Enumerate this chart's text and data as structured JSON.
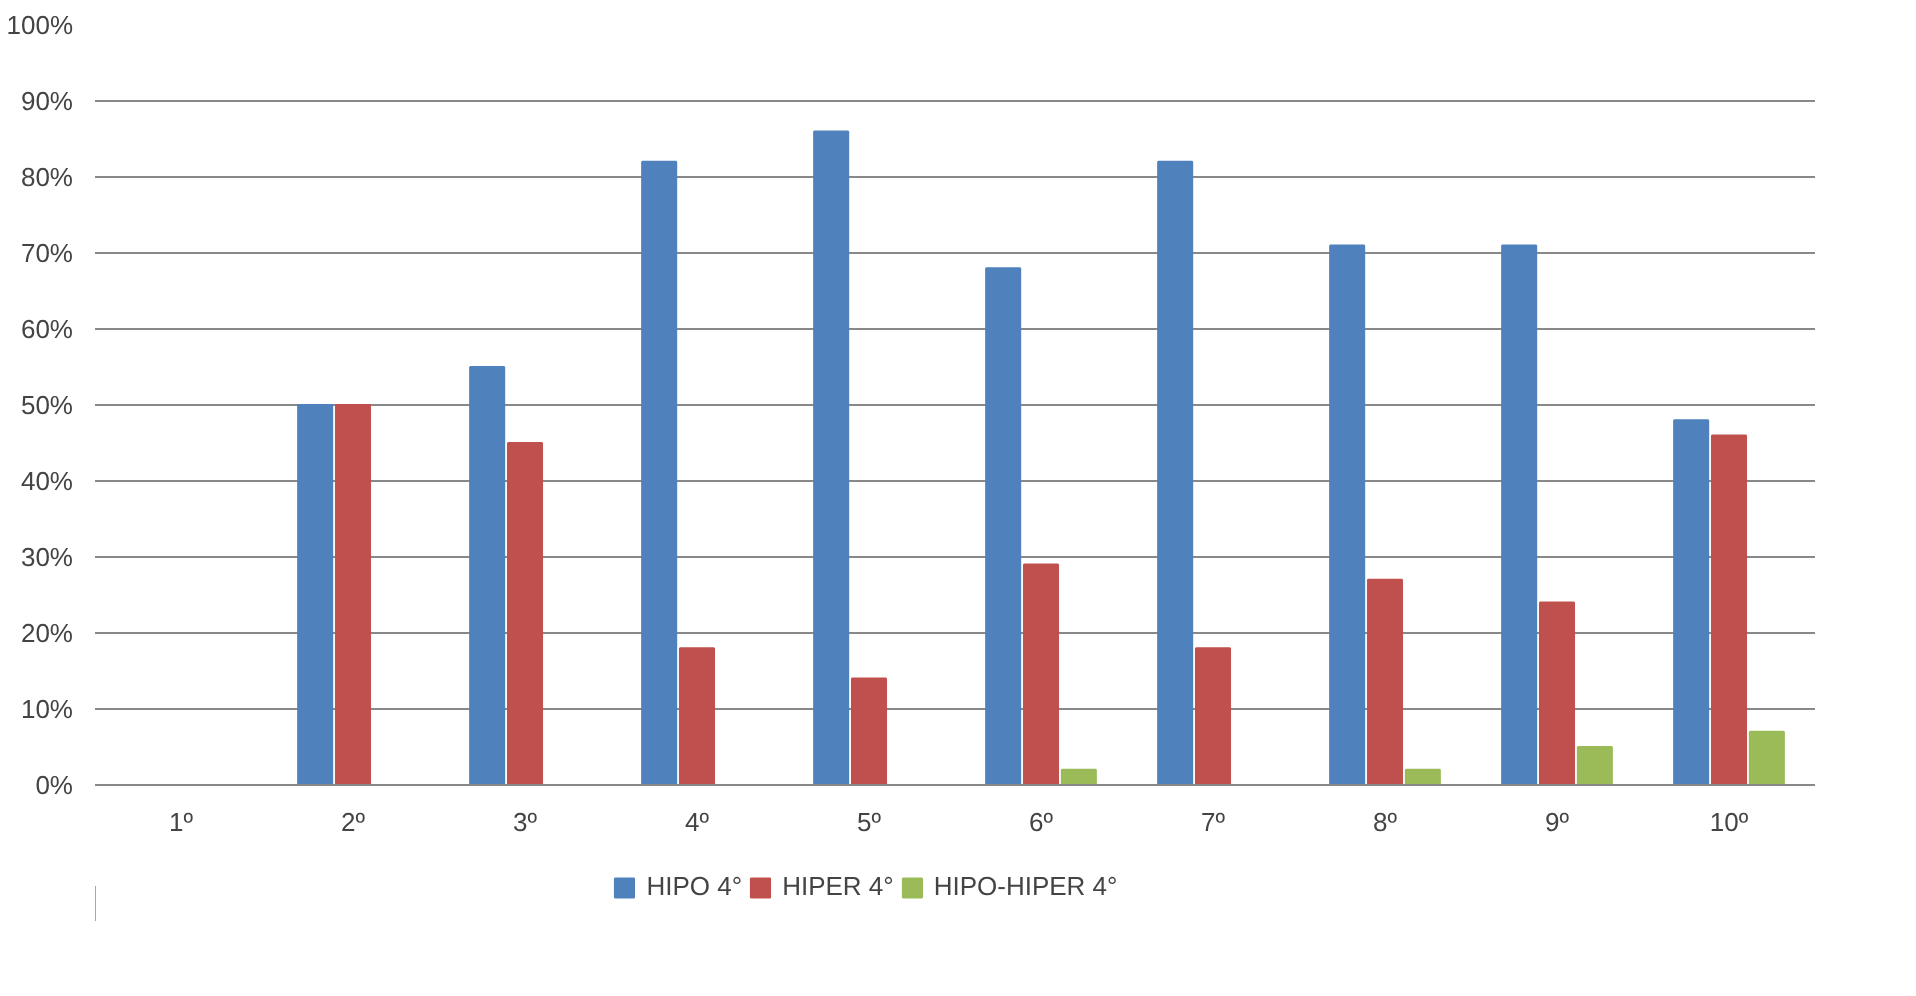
{
  "chart_data": {
    "type": "bar",
    "categories": [
      "1º",
      "2º",
      "3º",
      "4º",
      "5º",
      "6º",
      "7º",
      "8º",
      "9º",
      "10º"
    ],
    "series": [
      {
        "name": "HIPO 4°",
        "color": "#4f81bd",
        "values": [
          0,
          50,
          55,
          82,
          86,
          68,
          82,
          71,
          71,
          48
        ]
      },
      {
        "name": "HIPER 4°",
        "color": "#c0504d",
        "values": [
          0,
          50,
          45,
          18,
          14,
          29,
          18,
          27,
          24,
          46
        ]
      },
      {
        "name": "HIPO-HIPER 4°",
        "color": "#9bbb59",
        "values": [
          0,
          0,
          0,
          0,
          0,
          2,
          0,
          2,
          5,
          7
        ]
      }
    ],
    "ylim": [
      0,
      100
    ],
    "yticks": [
      {
        "value": 0,
        "label": "0%"
      },
      {
        "value": 10,
        "label": "10%"
      },
      {
        "value": 20,
        "label": "20%"
      },
      {
        "value": 30,
        "label": "30%"
      },
      {
        "value": 40,
        "label": "40%"
      },
      {
        "value": 50,
        "label": "50%"
      },
      {
        "value": 60,
        "label": "60%"
      },
      {
        "value": 70,
        "label": "70%"
      },
      {
        "value": 80,
        "label": "80%"
      },
      {
        "value": 90,
        "label": "90%"
      },
      {
        "value": 100,
        "label": "100%"
      }
    ],
    "grid": "y",
    "legend": "bottom"
  }
}
